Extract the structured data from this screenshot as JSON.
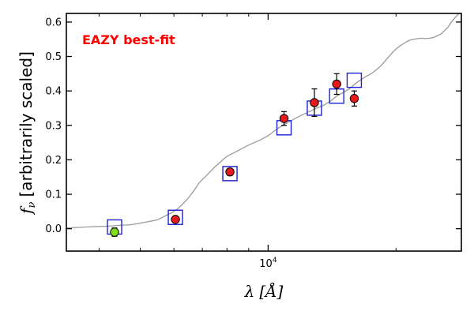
{
  "chart_data": {
    "type": "scatter",
    "title": "",
    "annotation": "EAZY best-fit",
    "xlabel": "λ [Å]",
    "ylabel": "f_ν [arbitrarily scaled]",
    "ylabel_symbol": "f",
    "ylabel_subscript": "ν",
    "ylabel_text": "[arbitrarily scaled]",
    "xlabel_symbol": "λ",
    "xlabel_text": "[Å]",
    "xscale": "log",
    "xlim": [
      3350,
      28500
    ],
    "ylim": [
      -0.065,
      0.625
    ],
    "x_ticks": [
      {
        "value": 10000,
        "base": "10",
        "exp": "4"
      }
    ],
    "x_minor_ticks": [
      4000,
      5000,
      6000,
      7000,
      8000,
      9000,
      20000
    ],
    "y_ticks": [
      0.0,
      0.1,
      0.2,
      0.3,
      0.4,
      0.5,
      0.6
    ],
    "y_tick_labels": [
      "0.0",
      "0.1",
      "0.2",
      "0.3",
      "0.4",
      "0.5",
      "0.6"
    ],
    "grid": false,
    "template_color": "#9a9a9a",
    "template": [
      [
        3350,
        0.002
      ],
      [
        3600,
        0.004
      ],
      [
        3900,
        0.006
      ],
      [
        4100,
        0.007
      ],
      [
        4300,
        0.008
      ],
      [
        4500,
        0.01
      ],
      [
        4700,
        0.011
      ],
      [
        4900,
        0.014
      ],
      [
        5100,
        0.018
      ],
      [
        5300,
        0.022
      ],
      [
        5500,
        0.026
      ],
      [
        5700,
        0.036
      ],
      [
        5900,
        0.045
      ],
      [
        6100,
        0.056
      ],
      [
        6300,
        0.072
      ],
      [
        6500,
        0.09
      ],
      [
        6700,
        0.112
      ],
      [
        6900,
        0.135
      ],
      [
        7100,
        0.15
      ],
      [
        7300,
        0.165
      ],
      [
        7500,
        0.18
      ],
      [
        7700,
        0.192
      ],
      [
        7900,
        0.205
      ],
      [
        8100,
        0.214
      ],
      [
        8300,
        0.22
      ],
      [
        8600,
        0.23
      ],
      [
        8900,
        0.24
      ],
      [
        9200,
        0.248
      ],
      [
        9600,
        0.258
      ],
      [
        10000,
        0.27
      ],
      [
        10500,
        0.29
      ],
      [
        11000,
        0.305
      ],
      [
        11500,
        0.318
      ],
      [
        12000,
        0.33
      ],
      [
        12500,
        0.34
      ],
      [
        13000,
        0.35
      ],
      [
        13500,
        0.358
      ],
      [
        14000,
        0.37
      ],
      [
        14500,
        0.385
      ],
      [
        15000,
        0.395
      ],
      [
        15500,
        0.405
      ],
      [
        16000,
        0.42
      ],
      [
        16500,
        0.432
      ],
      [
        17000,
        0.442
      ],
      [
        17500,
        0.45
      ],
      [
        18000,
        0.462
      ],
      [
        18500,
        0.475
      ],
      [
        19000,
        0.492
      ],
      [
        19500,
        0.508
      ],
      [
        20000,
        0.522
      ],
      [
        20500,
        0.532
      ],
      [
        21000,
        0.54
      ],
      [
        21500,
        0.547
      ],
      [
        22000,
        0.55
      ],
      [
        22500,
        0.552
      ],
      [
        23000,
        0.553
      ],
      [
        23500,
        0.552
      ],
      [
        24000,
        0.553
      ],
      [
        24500,
        0.555
      ],
      [
        25000,
        0.56
      ],
      [
        25500,
        0.565
      ],
      [
        26000,
        0.575
      ],
      [
        26500,
        0.585
      ],
      [
        27000,
        0.6
      ],
      [
        27500,
        0.612
      ],
      [
        28000,
        0.622
      ],
      [
        28500,
        0.63
      ]
    ],
    "model_color": "#1f1fd6",
    "model_points": [
      {
        "x": 4350,
        "y": 0.005
      },
      {
        "x": 6050,
        "y": 0.033
      },
      {
        "x": 8130,
        "y": 0.16
      },
      {
        "x": 10900,
        "y": 0.293
      },
      {
        "x": 12850,
        "y": 0.35
      },
      {
        "x": 14500,
        "y": 0.385
      },
      {
        "x": 15950,
        "y": 0.431
      }
    ],
    "observed_points": [
      {
        "x": 4350,
        "y": -0.01,
        "err": 0.012,
        "color": "#7de014"
      },
      {
        "x": 6050,
        "y": 0.027,
        "err": 0.006,
        "color": "#e51a1a"
      },
      {
        "x": 8130,
        "y": 0.165,
        "err": 0.01,
        "color": "#e51a1a"
      },
      {
        "x": 10900,
        "y": 0.32,
        "err": 0.02,
        "color": "#e51a1a"
      },
      {
        "x": 12850,
        "y": 0.366,
        "err": 0.04,
        "color": "#e51a1a"
      },
      {
        "x": 14500,
        "y": 0.42,
        "err": 0.03,
        "color": "#e51a1a"
      },
      {
        "x": 15950,
        "y": 0.378,
        "err": 0.022,
        "color": "#e51a1a"
      }
    ],
    "annotation_color": "#ff0000"
  }
}
